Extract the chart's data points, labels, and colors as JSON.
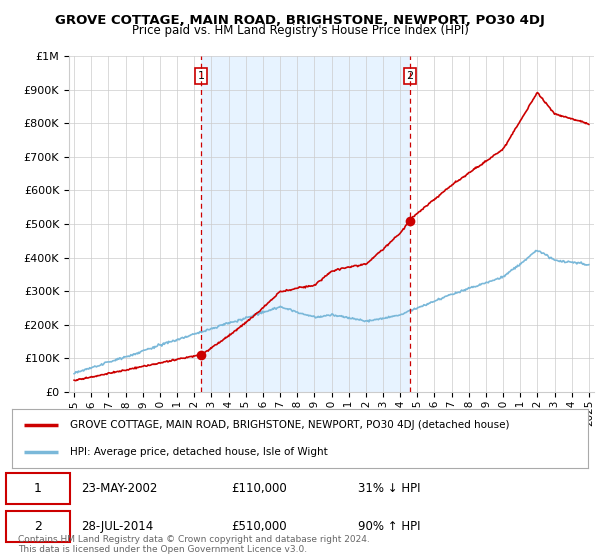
{
  "title": "GROVE COTTAGE, MAIN ROAD, BRIGHSTONE, NEWPORT, PO30 4DJ",
  "subtitle": "Price paid vs. HM Land Registry's House Price Index (HPI)",
  "legend_line1": "GROVE COTTAGE, MAIN ROAD, BRIGHSTONE, NEWPORT, PO30 4DJ (detached house)",
  "legend_line2": "HPI: Average price, detached house, Isle of Wight",
  "sale1_date": 2002.39,
  "sale1_price": 110000,
  "sale2_date": 2014.57,
  "sale2_price": 510000,
  "sale1_display": "23-MAY-2002",
  "sale1_text": "£110,000",
  "sale1_pct": "31% ↓ HPI",
  "sale2_display": "28-JUL-2014",
  "sale2_text": "£510,000",
  "sale2_pct": "90% ↑ HPI",
  "footer": "Contains HM Land Registry data © Crown copyright and database right 2024.\nThis data is licensed under the Open Government Licence v3.0.",
  "hpi_color": "#7ab8d9",
  "price_color": "#cc0000",
  "shade_color": "#ddeeff",
  "background_color": "#ffffff",
  "ylim": [
    0,
    1000000
  ],
  "xlim": [
    1994.7,
    2025.3
  ],
  "yticks": [
    0,
    100000,
    200000,
    300000,
    400000,
    500000,
    600000,
    700000,
    800000,
    900000,
    1000000
  ],
  "ytick_labels": [
    "£0",
    "£100K",
    "£200K",
    "£300K",
    "£400K",
    "£500K",
    "£600K",
    "£700K",
    "£800K",
    "£900K",
    "£1M"
  ],
  "xticks": [
    1995,
    1996,
    1997,
    1998,
    1999,
    2000,
    2001,
    2002,
    2003,
    2004,
    2005,
    2006,
    2007,
    2008,
    2009,
    2010,
    2011,
    2012,
    2013,
    2014,
    2015,
    2016,
    2017,
    2018,
    2019,
    2020,
    2021,
    2022,
    2023,
    2024,
    2025
  ]
}
